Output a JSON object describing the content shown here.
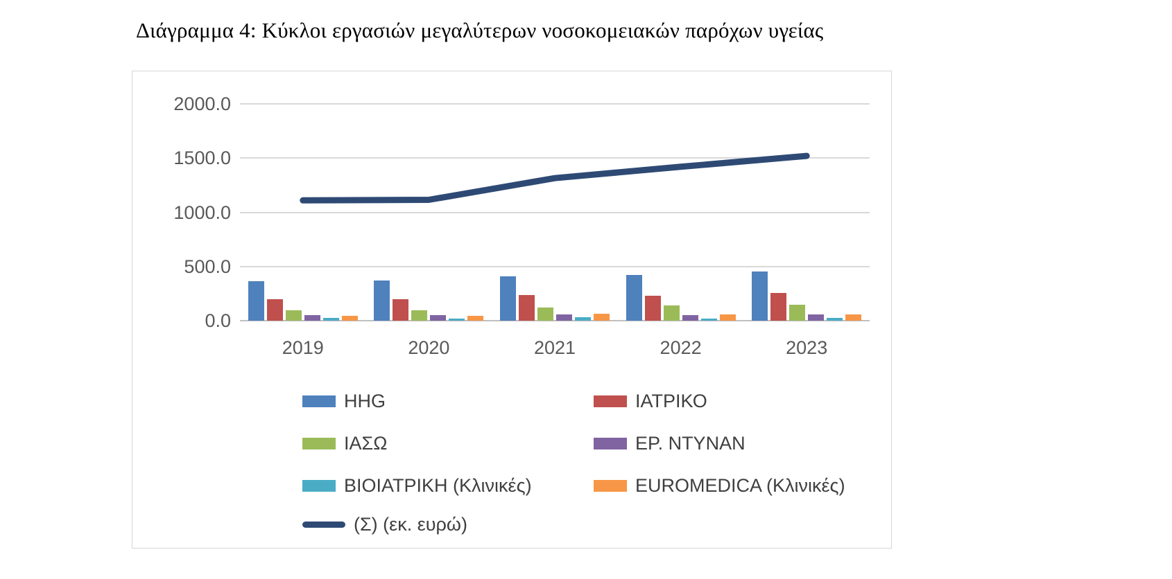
{
  "title": "Διάγραμμα 4: Κύκλοι εργασιών μεγαλύτερων νοσοκομειακών παρόχων υγείας",
  "chart_data": {
    "type": "bar",
    "subtype": "grouped-bars-with-line",
    "title": "Διάγραμμα 4: Κύκλοι εργασιών μεγαλύτερων νοσοκομειακών παρόχων υγείας",
    "categories": [
      "2019",
      "2020",
      "2021",
      "2022",
      "2023"
    ],
    "series": [
      {
        "name": "HHG",
        "type": "bar",
        "color": "#4f81bd",
        "values": [
          365,
          370,
          410,
          420,
          455
        ]
      },
      {
        "name": "ΙΑΤΡΙΚΟ",
        "type": "bar",
        "color": "#c0504d",
        "values": [
          195,
          197,
          235,
          233,
          255
        ]
      },
      {
        "name": "ΙΑΣΩ",
        "type": "bar",
        "color": "#9bbb59",
        "values": [
          95,
          98,
          120,
          138,
          145
        ]
      },
      {
        "name": "ΕΡ. ΝΤΥΝΑΝ",
        "type": "bar",
        "color": "#8064a2",
        "values": [
          50,
          50,
          55,
          52,
          55
        ]
      },
      {
        "name": "ΒΙΟΙΑΤΡΙΚΗ (Κλινικές)",
        "type": "bar",
        "color": "#4bacc6",
        "values": [
          25,
          22,
          30,
          20,
          25
        ]
      },
      {
        "name": "EUROMEDICA (Κλινικές)",
        "type": "bar",
        "color": "#f79646",
        "values": [
          45,
          42,
          65,
          60,
          60
        ]
      },
      {
        "name": "(Σ) (εκ. ευρώ)",
        "type": "line",
        "color": "#2e4a74",
        "values": [
          1110,
          1115,
          1315,
          1420,
          1520
        ]
      }
    ],
    "ylim": [
      0,
      2000
    ],
    "yticks": [
      0,
      500,
      1000,
      1500,
      2000
    ],
    "ytick_labels": [
      "0.0",
      "500.0",
      "1000.0",
      "1500.0",
      "2000.0"
    ],
    "xlabel": "",
    "ylabel": "",
    "grid": true,
    "legend_position": "bottom"
  }
}
